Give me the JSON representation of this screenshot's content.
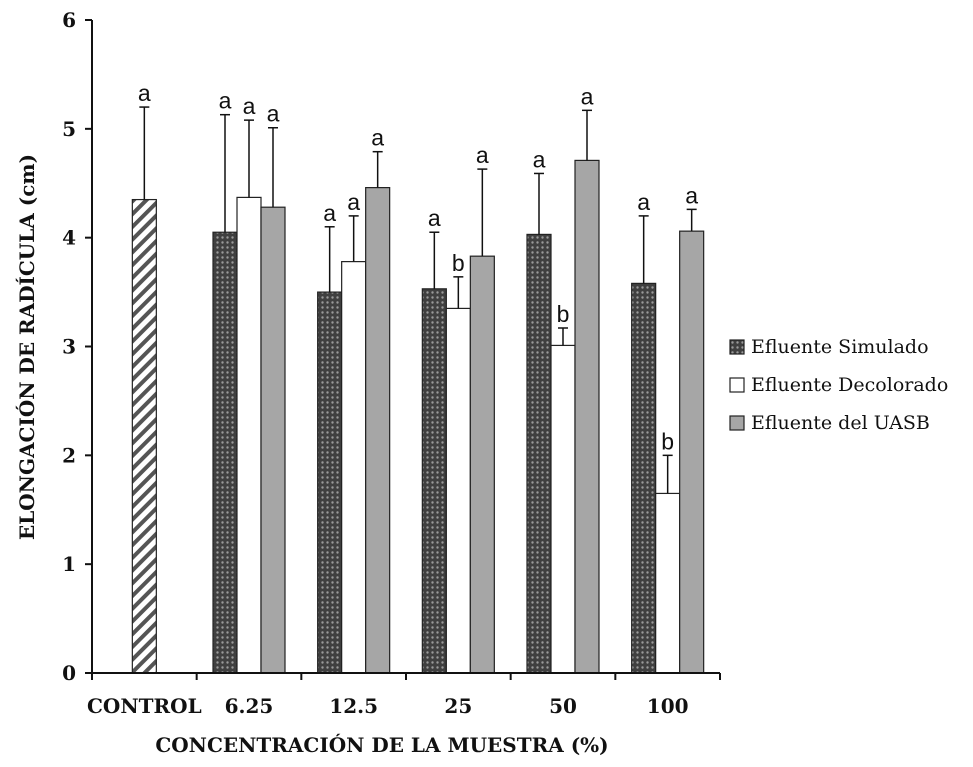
{
  "chart_data": {
    "type": "bar",
    "xlabel": "CONCENTRACIÓN DE LA MUESTRA (%)",
    "ylabel": "ELONGACIÓN DE RADÍCULA (cm)",
    "ylim": [
      0,
      6
    ],
    "yticks": [
      "0",
      "1",
      "2",
      "3",
      "4",
      "5",
      "6"
    ],
    "categories": [
      "CONTROL",
      "6.25",
      "12.5",
      "25",
      "50",
      "100"
    ],
    "legend_position": "right",
    "series": [
      {
        "key": "control",
        "pattern": "diagonal-hatch",
        "values": [
          4.35,
          null,
          null,
          null,
          null,
          null
        ],
        "errors": [
          0.85,
          null,
          null,
          null,
          null,
          null
        ],
        "letters": [
          "a",
          null,
          null,
          null,
          null,
          null
        ]
      },
      {
        "key": "simulado",
        "name": "Efluente Simulado",
        "pattern": "dark-dots",
        "values": [
          null,
          4.05,
          3.5,
          3.53,
          4.03,
          3.58
        ],
        "errors": [
          null,
          1.08,
          0.6,
          0.52,
          0.56,
          0.62
        ],
        "letters": [
          null,
          "a",
          "a",
          "a",
          "a",
          "a"
        ]
      },
      {
        "key": "decolorado",
        "name": "Efluente Decolorado",
        "pattern": "white",
        "values": [
          null,
          4.37,
          3.78,
          3.35,
          3.01,
          1.65
        ],
        "errors": [
          null,
          0.71,
          0.42,
          0.29,
          0.16,
          0.35
        ],
        "letters": [
          null,
          "a",
          "a",
          "b",
          "b",
          "b"
        ]
      },
      {
        "key": "uasb",
        "name": "Efluente del UASB",
        "pattern": "grey",
        "values": [
          null,
          4.28,
          4.46,
          3.83,
          4.71,
          4.06
        ],
        "errors": [
          null,
          0.73,
          0.33,
          0.8,
          0.46,
          0.2
        ],
        "letters": [
          null,
          "a",
          "a",
          "a",
          "a",
          "a"
        ]
      }
    ],
    "colors": {
      "simulado_fill": "#3f3f3f",
      "simulado_dot": "#9a9a9a",
      "decolorado_fill": "#ffffff",
      "uasb_fill": "#a6a6a6",
      "control_stripe": "#555555",
      "outline": "#222222"
    }
  }
}
